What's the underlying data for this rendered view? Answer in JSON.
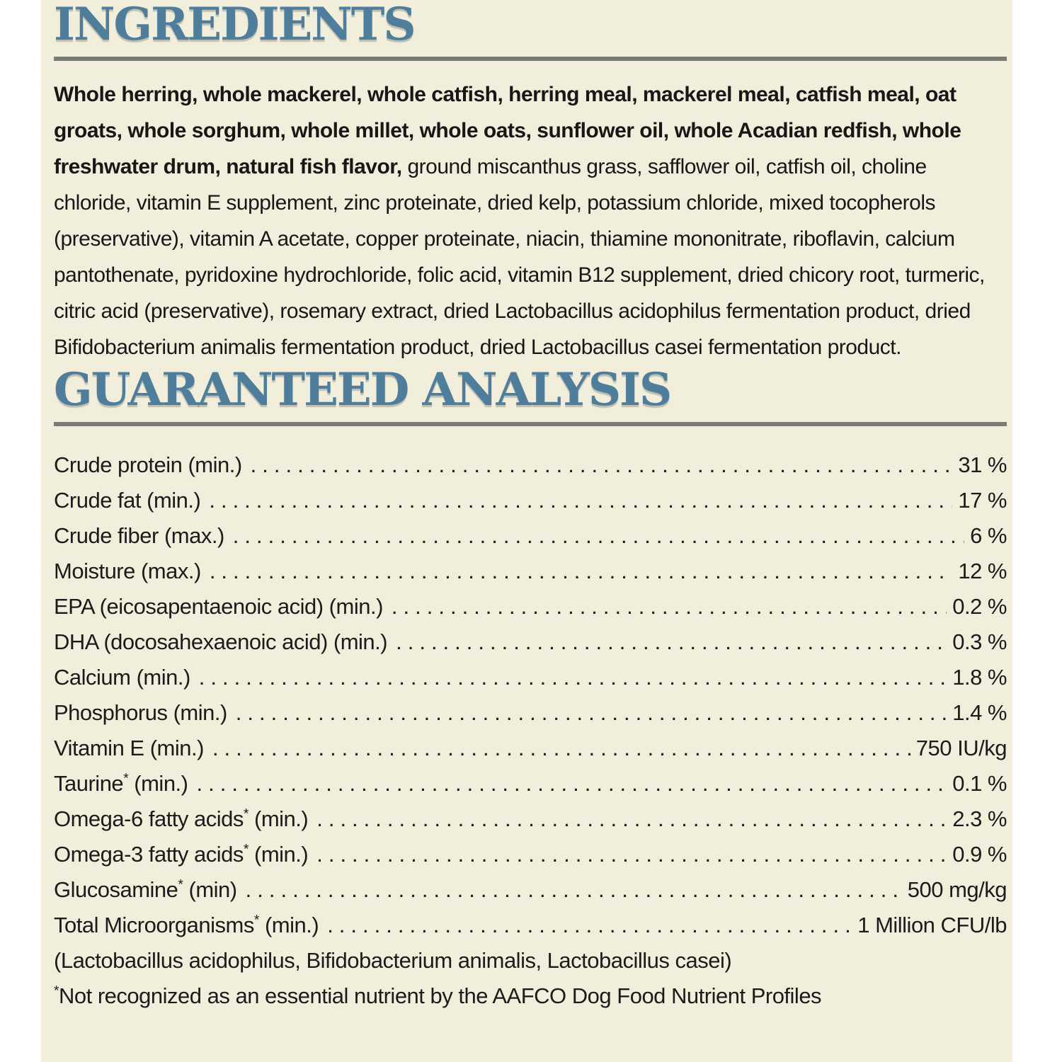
{
  "page": {
    "background_color": "#ffffff",
    "label_background_color": "#f1eedb",
    "heading_color": "#4e7e9b",
    "rule_color": "#7b7b76",
    "text_color": "#1b1b1b"
  },
  "ingredients": {
    "heading": "INGREDIENTS",
    "bold_text": "Whole herring, whole mackerel, whole catfish, herring meal, mackerel meal, catfish meal, oat groats, whole sorghum, whole millet, whole oats, sunflower oil, whole Acadian redfish, whole freshwater drum, natural fish flavor,",
    "regular_text": " ground miscanthus grass, safflower oil, catfish oil, choline chloride, vitamin E supplement, zinc proteinate, dried kelp, potassium chloride, mixed tocopherols (preservative), vitamin A acetate, copper proteinate, niacin, thiamine mononitrate, riboflavin, calcium pantothenate, pyridoxine hydrochloride, folic acid, vitamin B12 supplement, dried chicory root, turmeric, citric acid (preservative), rosemary extract, dried Lactobacillus acidophilus fermentation product, dried Bifidobacterium animalis fermentation product, dried Lactobacillus casei fermentation product."
  },
  "analysis": {
    "heading": "GUARANTEED ANALYSIS",
    "rows": [
      {
        "name": "Crude protein",
        "sup": "",
        "qual": " (min.)",
        "value": "31 %"
      },
      {
        "name": "Crude fat",
        "sup": "",
        "qual": " (min.)",
        "value": "17 %"
      },
      {
        "name": "Crude fiber",
        "sup": "",
        "qual": " (max.)",
        "value": "6 %"
      },
      {
        "name": "Moisture",
        "sup": "",
        "qual": " (max.)",
        "value": "12 %"
      },
      {
        "name": "EPA (eicosapentaenoic acid)",
        "sup": "",
        "qual": " (min.)",
        "value": "0.2 %"
      },
      {
        "name": "DHA (docosahexaenoic acid)",
        "sup": "",
        "qual": " (min.)",
        "value": "0.3 %"
      },
      {
        "name": "Calcium",
        "sup": "",
        "qual": " (min.)",
        "value": "1.8 %"
      },
      {
        "name": "Phosphorus",
        "sup": "",
        "qual": " (min.)",
        "value": "1.4 %"
      },
      {
        "name": "Vitamin E",
        "sup": "",
        "qual": " (min.)",
        "value": "750 IU/kg"
      },
      {
        "name": "Taurine",
        "sup": "*",
        "qual": " (min.)",
        "value": "0.1 %"
      },
      {
        "name": "Omega-6 fatty acids",
        "sup": "*",
        "qual": " (min.)",
        "value": "2.3 %"
      },
      {
        "name": "Omega-3 fatty acids",
        "sup": "*",
        "qual": " (min.)",
        "value": "0.9 %"
      },
      {
        "name": "Glucosamine",
        "sup": "*",
        "qual": " (min)",
        "value": "500 mg/kg"
      },
      {
        "name": "Total Microorganisms",
        "sup": "*",
        "qual": " (min.)",
        "value": "1 Million CFU/lb"
      }
    ],
    "microorganisms_detail": "(Lactobacillus acidophilus, Bifidobacterium animalis, Lactobacillus casei)",
    "footnote_sup": "*",
    "footnote_text": "Not recognized as an essential nutrient by the AAFCO Dog Food Nutrient Profiles"
  }
}
